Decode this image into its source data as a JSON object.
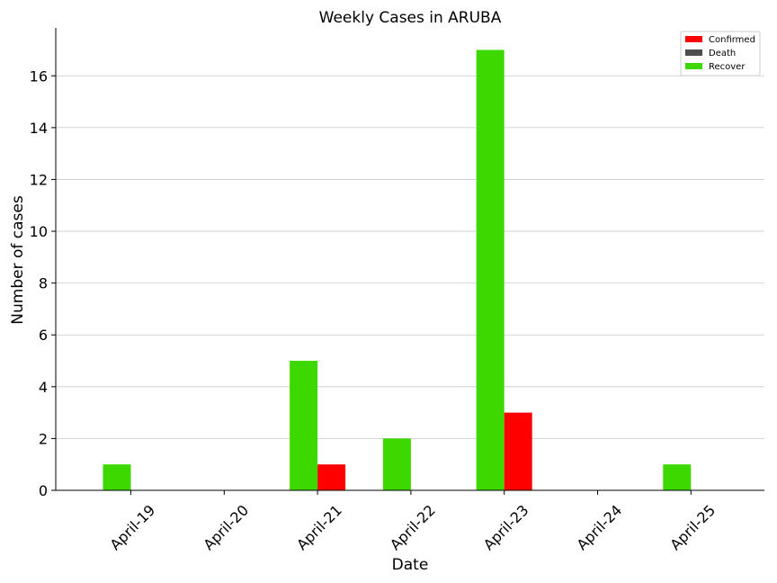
{
  "chart_data": {
    "type": "bar",
    "title": "Weekly Cases in ARUBA",
    "xlabel": "Date",
    "ylabel": "Number of cases",
    "categories": [
      "April-19",
      "April-20",
      "April-21",
      "April-22",
      "April-23",
      "April-24",
      "April-25"
    ],
    "series": [
      {
        "name": "Confirmed",
        "color": "#ff0000",
        "values": [
          0,
          0,
          1,
          0,
          3,
          0,
          0
        ]
      },
      {
        "name": "Death",
        "color": "#4d4d4d",
        "values": [
          0,
          0,
          0,
          0,
          0,
          0,
          0
        ]
      },
      {
        "name": "Recover",
        "color": "#3dd800",
        "values": [
          1,
          0,
          5,
          2,
          17,
          0,
          1
        ]
      }
    ],
    "ylim": [
      0,
      17.85
    ],
    "yticks": [
      0,
      2,
      4,
      6,
      8,
      10,
      12,
      14,
      16
    ],
    "grid": "horizontal",
    "legend_position": "top-right"
  }
}
